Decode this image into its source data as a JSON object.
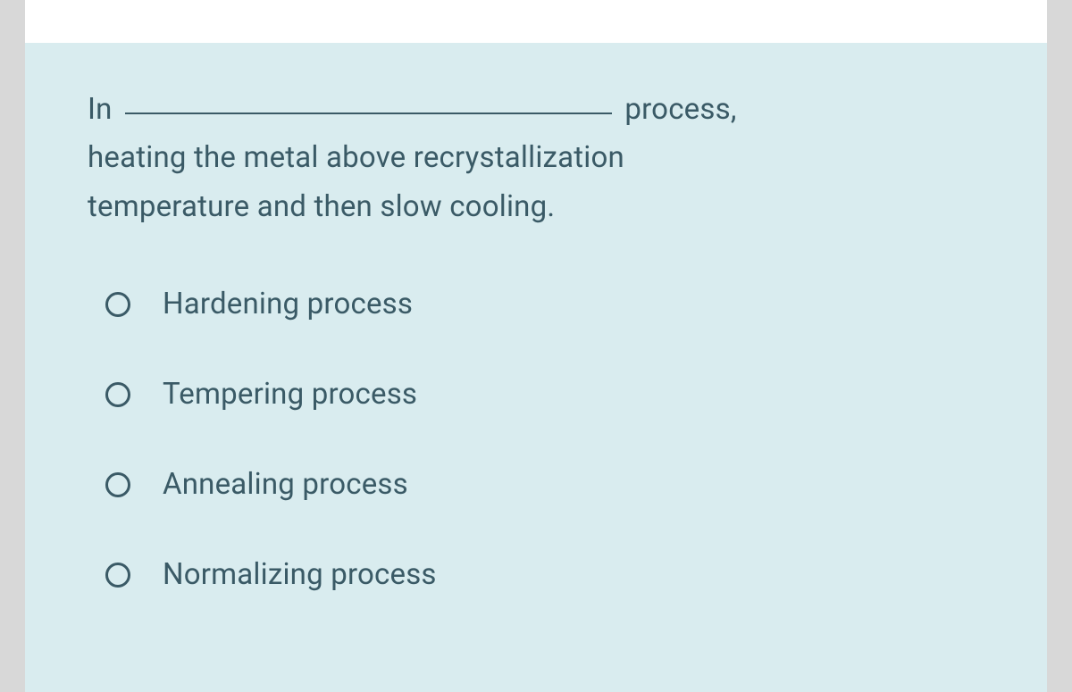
{
  "colors": {
    "page_background": "#d8d8d8",
    "card_background": "#d9ecef",
    "white_bar": "#ffffff",
    "text_color": "#3a5a66",
    "radio_border": "#3a5a66",
    "blank_underline": "#3a5a66"
  },
  "typography": {
    "question_fontsize": 33,
    "option_fontsize": 33,
    "line_height": 1.65
  },
  "question": {
    "prefix": "In",
    "suffix_line1": "process,",
    "line2": "heating the metal above recrystallization",
    "line3": "temperature and then slow cooling."
  },
  "options": [
    {
      "label": "Hardening process",
      "selected": false
    },
    {
      "label": "Tempering process",
      "selected": false
    },
    {
      "label": "Annealing process",
      "selected": false
    },
    {
      "label": "Normalizing process",
      "selected": false
    }
  ]
}
